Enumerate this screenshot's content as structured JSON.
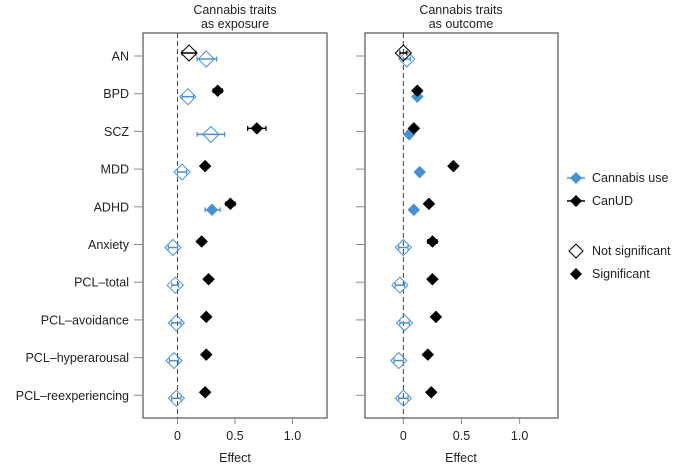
{
  "chart_data": [
    {
      "type": "scatter",
      "subtype": "forest-plot",
      "title_lines": [
        "Cannabis traits",
        "as exposure"
      ],
      "xlabel": "Effect",
      "xlim": [
        -0.3,
        1.3
      ],
      "xticks": [
        0,
        0.5,
        1.0
      ],
      "xtick_labels": [
        "0",
        "0.5",
        "1.0"
      ],
      "reference_line": 0,
      "categories": [
        "AN",
        "BPD",
        "SCZ",
        "MDD",
        "ADHD",
        "Anxiety",
        "PCL–total",
        "PCL–avoidance",
        "PCL–hyperarousal",
        "PCL–reexperiencing"
      ],
      "series": [
        {
          "name": "Cannabis use",
          "color": "#4a90d0",
          "values": [
            0.25,
            0.09,
            0.29,
            0.04,
            0.3,
            -0.04,
            -0.02,
            -0.01,
            -0.03,
            -0.01
          ],
          "ci_low": [
            0.17,
            0.04,
            0.17,
            0.0,
            0.24,
            -0.08,
            -0.05,
            -0.05,
            -0.07,
            -0.05
          ],
          "ci_high": [
            0.34,
            0.14,
            0.41,
            0.08,
            0.37,
            0.0,
            0.01,
            0.03,
            0.01,
            0.03
          ],
          "significant": [
            false,
            false,
            false,
            false,
            true,
            false,
            false,
            false,
            false,
            false
          ]
        },
        {
          "name": "CanUD",
          "color": "#000000",
          "values": [
            0.1,
            0.35,
            0.69,
            0.24,
            0.46,
            0.21,
            0.27,
            0.25,
            0.25,
            0.24
          ],
          "ci_low": [
            0.04,
            0.31,
            0.61,
            0.21,
            0.42,
            0.18,
            0.24,
            0.22,
            0.22,
            0.21
          ],
          "ci_high": [
            0.16,
            0.39,
            0.77,
            0.27,
            0.5,
            0.24,
            0.3,
            0.28,
            0.28,
            0.27
          ],
          "significant": [
            false,
            true,
            true,
            true,
            true,
            true,
            true,
            true,
            true,
            true
          ]
        }
      ]
    },
    {
      "type": "scatter",
      "subtype": "forest-plot",
      "title_lines": [
        "Cannabis traits",
        "as outcome"
      ],
      "xlabel": "Effect",
      "xlim": [
        -0.33,
        1.33
      ],
      "xticks": [
        0,
        0.5,
        1.0
      ],
      "xtick_labels": [
        "0",
        "0.5",
        "1.0"
      ],
      "reference_line": 0,
      "categories": [
        "AN",
        "BPD",
        "SCZ",
        "MDD",
        "ADHD",
        "Anxiety",
        "PCL–total",
        "PCL–avoidance",
        "PCL–hyperarousal",
        "PCL–reexperiencing"
      ],
      "series": [
        {
          "name": "Cannabis use",
          "color": "#4a90d0",
          "values": [
            0.03,
            0.12,
            0.05,
            0.14,
            0.09,
            0.0,
            -0.03,
            0.01,
            -0.04,
            0.0
          ],
          "ci_low": [
            0.0,
            0.1,
            0.03,
            0.12,
            0.07,
            -0.04,
            -0.07,
            -0.03,
            -0.08,
            -0.04
          ],
          "ci_high": [
            0.06,
            0.14,
            0.07,
            0.16,
            0.11,
            0.04,
            0.01,
            0.05,
            0.0,
            0.04
          ],
          "significant": [
            false,
            true,
            true,
            true,
            true,
            false,
            false,
            false,
            false,
            false
          ]
        },
        {
          "name": "CanUD",
          "color": "#000000",
          "values": [
            0.0,
            0.12,
            0.09,
            0.43,
            0.22,
            0.25,
            0.25,
            0.28,
            0.21,
            0.24
          ],
          "ci_low": [
            -0.03,
            0.09,
            0.07,
            0.41,
            0.2,
            0.21,
            0.23,
            0.26,
            0.19,
            0.22
          ],
          "ci_high": [
            0.03,
            0.15,
            0.11,
            0.45,
            0.24,
            0.29,
            0.27,
            0.3,
            0.23,
            0.26
          ],
          "significant": [
            false,
            true,
            true,
            true,
            true,
            true,
            true,
            true,
            true,
            true
          ]
        }
      ]
    }
  ],
  "legend": {
    "series": [
      {
        "label": "Cannabis use",
        "color": "#4a90d0"
      },
      {
        "label": "CanUD",
        "color": "#000000"
      }
    ],
    "markers": [
      {
        "label": "Not significant",
        "filled": false
      },
      {
        "label": "Significant",
        "filled": true
      }
    ]
  }
}
